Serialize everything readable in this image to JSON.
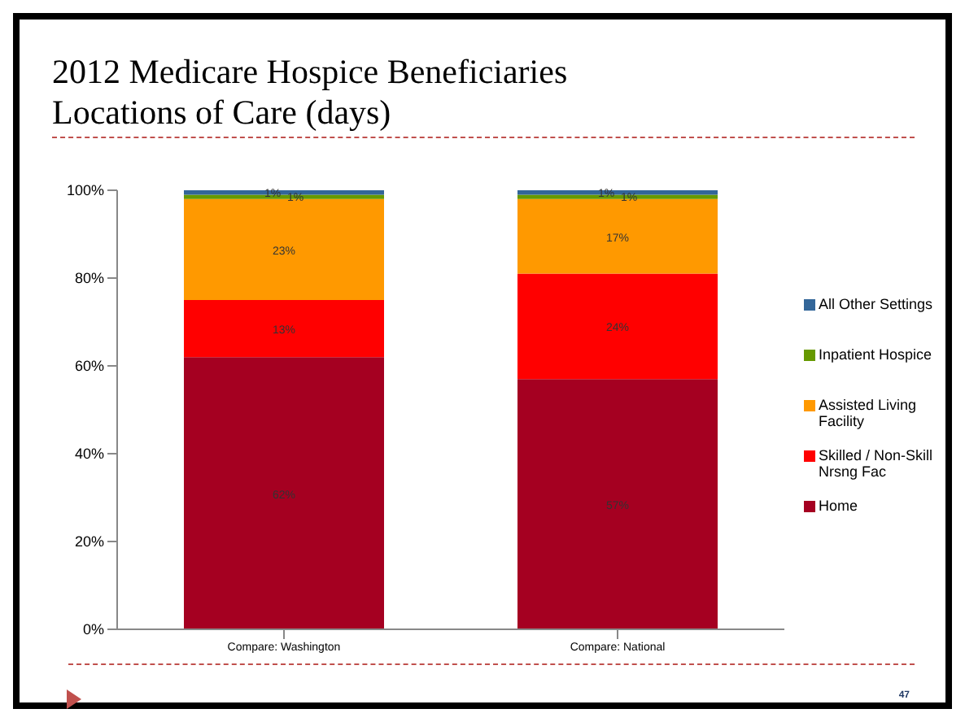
{
  "chart_data": {
    "type": "bar",
    "stacked": true,
    "title": "2012 Medicare Hospice Beneficiaries\nLocations of Care (days)",
    "categories": [
      "Compare: Washington",
      "Compare: National"
    ],
    "series": [
      {
        "name": "Home",
        "color": "#a50021",
        "values": [
          62,
          57
        ],
        "value_labels": [
          "62%",
          "57%"
        ]
      },
      {
        "name": "Skilled / Non-Skill Nrsng Fac",
        "color": "#ff0000",
        "values": [
          13,
          24
        ],
        "value_labels": [
          "13%",
          "24%"
        ]
      },
      {
        "name": "Assisted Living Facility",
        "color": "#ff9900",
        "values": [
          23,
          17
        ],
        "value_labels": [
          "23%",
          "17%"
        ]
      },
      {
        "name": "Inpatient Hospice",
        "color": "#669900",
        "values": [
          1,
          1
        ],
        "value_labels": [
          "1%",
          "1%"
        ]
      },
      {
        "name": "All Other Settings",
        "color": "#336699",
        "values": [
          1,
          1
        ],
        "value_labels": [
          "1%",
          "1%"
        ]
      }
    ],
    "ylim": [
      0,
      100
    ],
    "yticks": [
      {
        "value": 0,
        "label": "0%"
      },
      {
        "value": 20,
        "label": "20%"
      },
      {
        "value": 40,
        "label": "40%"
      },
      {
        "value": 60,
        "label": "60%"
      },
      {
        "value": 80,
        "label": "80%"
      },
      {
        "value": 100,
        "label": "100%"
      }
    ],
    "grid": false,
    "legend": "right",
    "annotations": [
      "47"
    ]
  }
}
